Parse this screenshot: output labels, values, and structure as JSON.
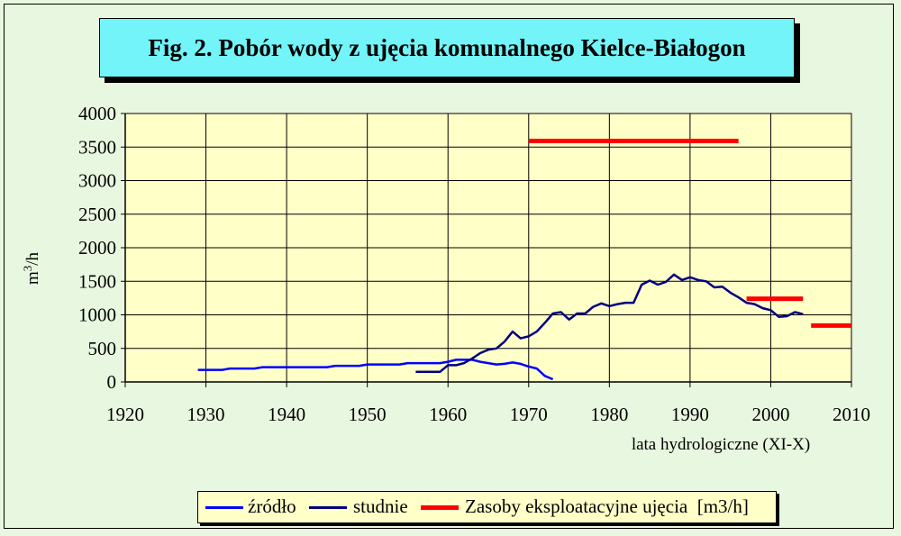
{
  "title": "Fig. 2. Pobór wody z ujęcia komunalnego Kielce-Białogon",
  "chart_data": {
    "type": "line",
    "title": "Fig. 2. Pobór wody z ujęcia komunalnego Kielce-Białogon",
    "xlabel": "lata hydrologiczne (XI-X)",
    "ylabel": "m3/h",
    "xlim": [
      1920,
      2010
    ],
    "ylim": [
      0,
      4000
    ],
    "x_ticks": [
      "1920",
      "1930",
      "1940",
      "1950",
      "1960",
      "1970",
      "1980",
      "1990",
      "2000",
      "2010"
    ],
    "y_ticks": [
      "0",
      "500",
      "1000",
      "1500",
      "2000",
      "2500",
      "3000",
      "3500",
      "4000"
    ],
    "grid": true,
    "legend_position": "bottom",
    "series": [
      {
        "name": "źródło",
        "color": "#0000ff",
        "points": [
          [
            1929,
            180
          ],
          [
            1930,
            180
          ],
          [
            1931,
            180
          ],
          [
            1932,
            180
          ],
          [
            1933,
            200
          ],
          [
            1934,
            200
          ],
          [
            1935,
            200
          ],
          [
            1936,
            200
          ],
          [
            1937,
            220
          ],
          [
            1938,
            220
          ],
          [
            1939,
            220
          ],
          [
            1940,
            220
          ],
          [
            1941,
            220
          ],
          [
            1942,
            220
          ],
          [
            1943,
            220
          ],
          [
            1944,
            220
          ],
          [
            1945,
            220
          ],
          [
            1946,
            240
          ],
          [
            1947,
            240
          ],
          [
            1948,
            240
          ],
          [
            1949,
            240
          ],
          [
            1950,
            260
          ],
          [
            1951,
            260
          ],
          [
            1952,
            260
          ],
          [
            1953,
            260
          ],
          [
            1954,
            260
          ],
          [
            1955,
            280
          ],
          [
            1956,
            280
          ],
          [
            1957,
            280
          ],
          [
            1958,
            280
          ],
          [
            1959,
            280
          ],
          [
            1960,
            300
          ],
          [
            1961,
            330
          ],
          [
            1962,
            330
          ],
          [
            1963,
            330
          ],
          [
            1964,
            300
          ],
          [
            1965,
            280
          ],
          [
            1966,
            260
          ],
          [
            1967,
            270
          ],
          [
            1968,
            290
          ],
          [
            1969,
            270
          ],
          [
            1970,
            230
          ],
          [
            1971,
            200
          ],
          [
            1972,
            90
          ],
          [
            1973,
            40
          ]
        ]
      },
      {
        "name": "studnie",
        "color": "#000080",
        "points": [
          [
            1956,
            150
          ],
          [
            1957,
            150
          ],
          [
            1958,
            150
          ],
          [
            1959,
            150
          ],
          [
            1960,
            250
          ],
          [
            1961,
            250
          ],
          [
            1962,
            280
          ],
          [
            1963,
            350
          ],
          [
            1964,
            430
          ],
          [
            1965,
            480
          ],
          [
            1966,
            500
          ],
          [
            1967,
            600
          ],
          [
            1968,
            750
          ],
          [
            1969,
            650
          ],
          [
            1970,
            680
          ],
          [
            1971,
            750
          ],
          [
            1972,
            880
          ],
          [
            1973,
            1020
          ],
          [
            1974,
            1040
          ],
          [
            1975,
            930
          ],
          [
            1976,
            1020
          ],
          [
            1977,
            1020
          ],
          [
            1978,
            1120
          ],
          [
            1979,
            1170
          ],
          [
            1980,
            1130
          ],
          [
            1981,
            1160
          ],
          [
            1982,
            1180
          ],
          [
            1983,
            1180
          ],
          [
            1984,
            1450
          ],
          [
            1985,
            1510
          ],
          [
            1986,
            1450
          ],
          [
            1987,
            1490
          ],
          [
            1988,
            1600
          ],
          [
            1989,
            1520
          ],
          [
            1990,
            1560
          ],
          [
            1991,
            1520
          ],
          [
            1992,
            1500
          ],
          [
            1993,
            1410
          ],
          [
            1994,
            1420
          ],
          [
            1995,
            1330
          ],
          [
            1996,
            1260
          ],
          [
            1997,
            1180
          ],
          [
            1998,
            1160
          ],
          [
            1999,
            1100
          ],
          [
            2000,
            1070
          ],
          [
            2001,
            970
          ],
          [
            2002,
            980
          ],
          [
            2003,
            1040
          ],
          [
            2004,
            1010
          ]
        ]
      },
      {
        "name": "Zasoby eksploatacyjne ujęcia  [m3/h]",
        "color": "#ff0000",
        "segments": [
          {
            "x": [
              1970,
              1996
            ],
            "y": 3590
          },
          {
            "x": [
              1997,
              2004
            ],
            "y": 1240
          },
          {
            "x": [
              2005,
              2010
            ],
            "y": 840
          }
        ]
      }
    ]
  },
  "legend": {
    "items": [
      {
        "label": "źródło",
        "color": "#0000ff"
      },
      {
        "label": "studnie",
        "color": "#000080"
      },
      {
        "label": "Zasoby eksploatacyjne ujęcia  [m3/h]",
        "color": "#ff0000"
      }
    ]
  },
  "colors": {
    "plot_background": "#ffffc8",
    "page_background": "#e8f8e0",
    "title_background": "#72f4f8"
  }
}
